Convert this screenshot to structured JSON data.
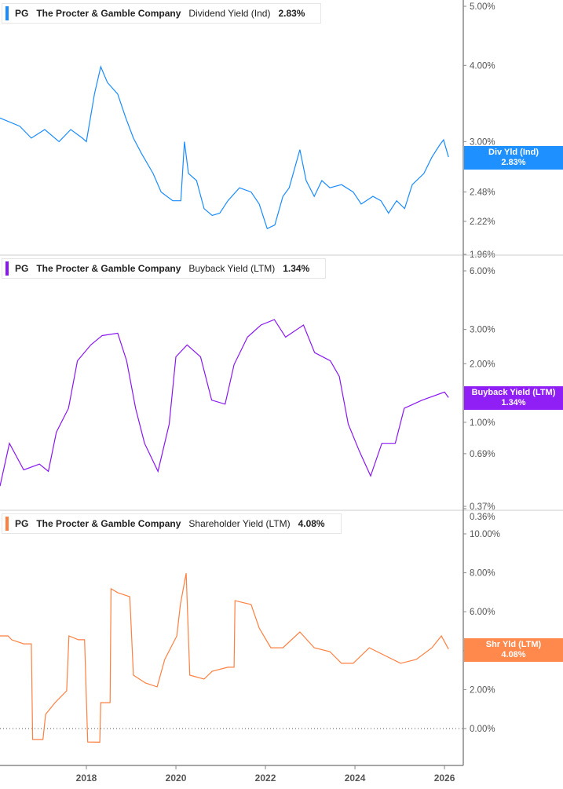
{
  "colors": {
    "dividend": "#1a8cff",
    "buyback": "#8a17f2",
    "shareholder": "#ff7f40",
    "dividend_badge": "#1e90ff",
    "buyback_badge": "#8f1ff5",
    "shareholder_badge": "#ff884d"
  },
  "panels": [
    {
      "ticker": "PG",
      "company": "The Procter & Gamble Company",
      "metric": "Dividend Yield (Ind)",
      "value": "2.83%",
      "badge_label": "Div Yld (Ind)",
      "badge_value": "2.83%"
    },
    {
      "ticker": "PG",
      "company": "The Procter & Gamble Company",
      "metric": "Buyback Yield (LTM)",
      "value": "1.34%",
      "badge_label": "Buyback Yield (LTM)",
      "badge_value": "1.34%"
    },
    {
      "ticker": "PG",
      "company": "The Procter & Gamble Company",
      "metric": "Shareholder Yield (LTM)",
      "value": "4.08%",
      "badge_label": "Shr Yld (LTM)",
      "badge_value": "4.08%"
    }
  ],
  "chart_data": [
    {
      "type": "line",
      "scale": "log",
      "series": [
        {
          "name": "Dividend Yield (Ind)",
          "unit": "%",
          "points": [
            [
              2016.07,
              3.28
            ],
            [
              2016.51,
              3.18
            ],
            [
              2016.77,
              3.04
            ],
            [
              2017.07,
              3.14
            ],
            [
              2017.39,
              3.0
            ],
            [
              2017.65,
              3.14
            ],
            [
              2017.91,
              3.04
            ],
            [
              2018.0,
              3.0
            ],
            [
              2018.18,
              3.59
            ],
            [
              2018.32,
              3.98
            ],
            [
              2018.47,
              3.75
            ],
            [
              2018.7,
              3.59
            ],
            [
              2018.88,
              3.28
            ],
            [
              2019.05,
              3.04
            ],
            [
              2019.23,
              2.87
            ],
            [
              2019.49,
              2.66
            ],
            [
              2019.67,
              2.48
            ],
            [
              2019.93,
              2.4
            ],
            [
              2020.11,
              2.4
            ],
            [
              2020.19,
              3.0
            ],
            [
              2020.28,
              2.66
            ],
            [
              2020.46,
              2.59
            ],
            [
              2020.63,
              2.33
            ],
            [
              2020.81,
              2.27
            ],
            [
              2020.98,
              2.29
            ],
            [
              2021.16,
              2.4
            ],
            [
              2021.42,
              2.52
            ],
            [
              2021.68,
              2.48
            ],
            [
              2021.86,
              2.37
            ],
            [
              2022.04,
              2.16
            ],
            [
              2022.21,
              2.19
            ],
            [
              2022.39,
              2.44
            ],
            [
              2022.53,
              2.52
            ],
            [
              2022.77,
              2.91
            ],
            [
              2022.91,
              2.59
            ],
            [
              2023.09,
              2.44
            ],
            [
              2023.26,
              2.59
            ],
            [
              2023.44,
              2.52
            ],
            [
              2023.7,
              2.55
            ],
            [
              2023.96,
              2.48
            ],
            [
              2024.14,
              2.37
            ],
            [
              2024.4,
              2.44
            ],
            [
              2024.58,
              2.4
            ],
            [
              2024.75,
              2.29
            ],
            [
              2024.93,
              2.4
            ],
            [
              2025.11,
              2.33
            ],
            [
              2025.28,
              2.55
            ],
            [
              2025.54,
              2.66
            ],
            [
              2025.72,
              2.83
            ],
            [
              2025.89,
              2.96
            ],
            [
              2025.98,
              3.02
            ],
            [
              2026.09,
              2.83
            ]
          ]
        }
      ],
      "y_ticks": [
        "5.00%",
        "4.00%",
        "3.00%",
        "2.48%",
        "2.22%",
        "1.96%"
      ],
      "y_tick_values": [
        5,
        4,
        3,
        2.48,
        2.22,
        1.96
      ],
      "ylim": [
        1.96,
        5.1
      ]
    },
    {
      "type": "line",
      "scale": "log",
      "series": [
        {
          "name": "Buyback Yield (LTM)",
          "unit": "%",
          "points": [
            [
              2016.07,
              0.47
            ],
            [
              2016.28,
              0.78
            ],
            [
              2016.6,
              0.57
            ],
            [
              2016.95,
              0.61
            ],
            [
              2017.15,
              0.56
            ],
            [
              2017.33,
              0.89
            ],
            [
              2017.6,
              1.18
            ],
            [
              2017.8,
              2.07
            ],
            [
              2018.1,
              2.5
            ],
            [
              2018.35,
              2.79
            ],
            [
              2018.7,
              2.87
            ],
            [
              2018.9,
              2.07
            ],
            [
              2019.1,
              1.18
            ],
            [
              2019.3,
              0.78
            ],
            [
              2019.6,
              0.56
            ],
            [
              2019.85,
              0.98
            ],
            [
              2020.0,
              2.17
            ],
            [
              2020.25,
              2.5
            ],
            [
              2020.55,
              2.17
            ],
            [
              2020.8,
              1.3
            ],
            [
              2021.1,
              1.24
            ],
            [
              2021.3,
              1.98
            ],
            [
              2021.6,
              2.74
            ],
            [
              2021.9,
              3.16
            ],
            [
              2022.2,
              3.37
            ],
            [
              2022.45,
              2.74
            ],
            [
              2022.85,
              3.16
            ],
            [
              2023.1,
              2.28
            ],
            [
              2023.45,
              2.07
            ],
            [
              2023.65,
              1.72
            ],
            [
              2023.85,
              0.98
            ],
            [
              2024.1,
              0.71
            ],
            [
              2024.35,
              0.53
            ],
            [
              2024.6,
              0.78
            ],
            [
              2024.9,
              0.78
            ],
            [
              2025.1,
              1.18
            ],
            [
              2025.5,
              1.3
            ],
            [
              2026.0,
              1.43
            ],
            [
              2026.09,
              1.34
            ]
          ]
        }
      ],
      "y_ticks": [
        "6.00%",
        "3.00%",
        "2.00%",
        "1.00%",
        "0.69%",
        "0.37%",
        "0.36%"
      ],
      "y_tick_values": [
        6,
        3,
        2,
        1,
        0.69,
        0.37,
        0.36
      ],
      "ylim": [
        0.36,
        6.5
      ]
    },
    {
      "type": "line",
      "scale": "linear",
      "series": [
        {
          "name": "Shareholder Yield (LTM)",
          "unit": "%",
          "points": [
            [
              2016.07,
              4.76
            ],
            [
              2016.25,
              4.76
            ],
            [
              2016.33,
              4.56
            ],
            [
              2016.6,
              4.35
            ],
            [
              2016.77,
              4.35
            ],
            [
              2016.8,
              -0.56
            ],
            [
              2017.03,
              -0.56
            ],
            [
              2017.09,
              0.73
            ],
            [
              2017.3,
              1.33
            ],
            [
              2017.56,
              1.94
            ],
            [
              2017.61,
              4.76
            ],
            [
              2017.82,
              4.56
            ],
            [
              2017.96,
              4.56
            ],
            [
              2018.03,
              -0.69
            ],
            [
              2018.3,
              -0.7
            ],
            [
              2018.32,
              1.33
            ],
            [
              2018.53,
              1.33
            ],
            [
              2018.55,
              7.18
            ],
            [
              2018.7,
              6.98
            ],
            [
              2018.97,
              6.77
            ],
            [
              2019.05,
              2.74
            ],
            [
              2019.32,
              2.34
            ],
            [
              2019.58,
              2.14
            ],
            [
              2019.75,
              3.55
            ],
            [
              2020.02,
              4.76
            ],
            [
              2020.1,
              6.37
            ],
            [
              2020.23,
              7.98
            ],
            [
              2020.31,
              2.74
            ],
            [
              2020.63,
              2.54
            ],
            [
              2020.81,
              2.94
            ],
            [
              2021.16,
              3.15
            ],
            [
              2021.3,
              3.15
            ],
            [
              2021.32,
              6.57
            ],
            [
              2021.68,
              6.37
            ],
            [
              2021.86,
              5.16
            ],
            [
              2022.12,
              4.15
            ],
            [
              2022.39,
              4.15
            ],
            [
              2022.77,
              4.96
            ],
            [
              2023.09,
              4.15
            ],
            [
              2023.44,
              3.95
            ],
            [
              2023.7,
              3.35
            ],
            [
              2023.96,
              3.35
            ],
            [
              2024.32,
              4.15
            ],
            [
              2024.67,
              3.75
            ],
            [
              2025.02,
              3.35
            ],
            [
              2025.37,
              3.55
            ],
            [
              2025.72,
              4.15
            ],
            [
              2025.93,
              4.76
            ],
            [
              2026.09,
              4.08
            ]
          ]
        }
      ],
      "y_ticks": [
        "10.00%",
        "8.00%",
        "6.00%",
        "4.00%",
        "2.00%",
        "0.00%"
      ],
      "y_tick_values": [
        10,
        8,
        6,
        4,
        2,
        0
      ],
      "ylim": [
        -1.8,
        11.2
      ]
    }
  ],
  "x_axis": {
    "ticks": [
      "2018",
      "2020",
      "2022",
      "2024",
      "2026"
    ],
    "tick_values": [
      2018,
      2020,
      2022,
      2024,
      2026
    ],
    "xlim": [
      2016.07,
      2026.42
    ]
  }
}
